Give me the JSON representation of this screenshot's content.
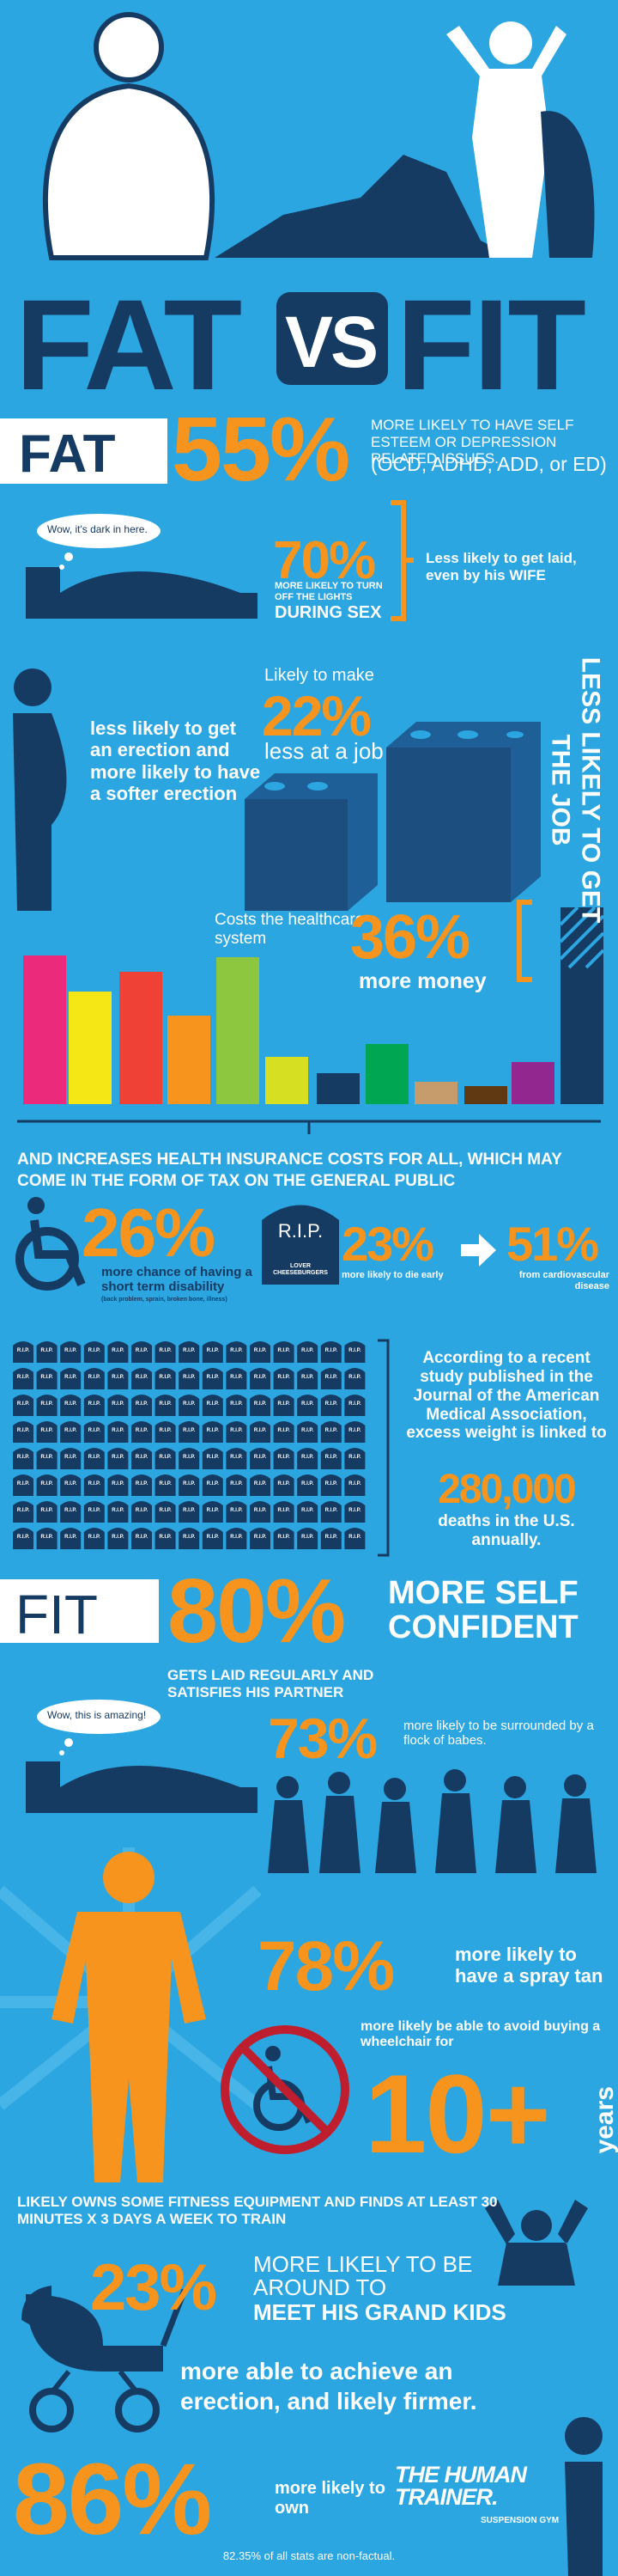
{
  "header": {
    "title_fat": "FAT",
    "title_vs": "VS",
    "title_fit": "FIT"
  },
  "fat": {
    "label": "FAT",
    "stat": "55%",
    "text_1": "MORE LIKELY TO HAVE SELF ESTEEM OR DEPRESSION RELATED ISSUES.",
    "text_2": "(OCD, ADHD, ADD, or ED)"
  },
  "lights": {
    "bubble": "Wow, it's dark in here.",
    "stat": "70%",
    "text_1": "MORE LIKELY TO TURN OFF THE LIGHTS",
    "text_2": "DURING SEX",
    "aside": "Less likely to get laid, even by his",
    "aside_emphasis": "WIFE"
  },
  "job": {
    "erection": "less likely to get an erection and more likely to have a softer erection",
    "lead": "Likely to make",
    "stat": "22%",
    "tail": "less at a job",
    "vertical": "LESS LIKELY TO GET THE JOB"
  },
  "healthcare": {
    "lead": "Costs the healthcare system",
    "stat": "36%",
    "tail": "more money",
    "insurance": "AND INCREASES HEALTH INSURANCE COSTS FOR ALL, WHICH MAY COME IN THE FORM OF TAX ON THE GENERAL PUBLIC"
  },
  "disability": {
    "stat": "26%",
    "text": "more chance of having a short term disability",
    "note": "(back problem, sprain, broken bone, illness)",
    "rip": "R.I.P.",
    "rip_sub": "LOVER CHEESEBURGERS",
    "die_stat": "23%",
    "die_text": "more likely to die early",
    "cardio_stat": "51%",
    "cardio_text": "from cardiovascular disease"
  },
  "deaths": {
    "grid_label": "R.I.P.",
    "text": "According to a recent study published in the Journal of the American Medical Association, excess weight is linked to",
    "stat": "280,000",
    "tail": "deaths in the U.S. annually."
  },
  "fit": {
    "label": "FIT",
    "stat": "80%",
    "text": "MORE SELF CONFIDENT"
  },
  "babes": {
    "bubble": "Wow, this is amazing!",
    "headline": "GETS LAID REGULARLY AND SATISFIES HIS PARTNER",
    "stat": "73%",
    "text": "more likely to be surrounded by a flock of babes."
  },
  "tan": {
    "stat": "78%",
    "text": "more likely to have a spray tan"
  },
  "wheelchair": {
    "text": "more likely be able to avoid buying a wheelchair for",
    "stat": "10+",
    "unit": "years"
  },
  "equipment": {
    "text": "LIKELY OWNS SOME FITNESS EQUIPMENT AND FINDS AT LEAST 30 MINUTES X 3 DAYS A WEEK TO TRAIN"
  },
  "grandkids": {
    "stat": "23%",
    "text": "MORE LIKELY TO BE AROUND TO",
    "emphasis": "MEET HIS GRAND KIDS"
  },
  "firmer": {
    "text": "more able to achieve an erection, and likely firmer."
  },
  "own": {
    "stat": "86%",
    "text": "more likely to own",
    "brand": "THE HUMAN TRAINER.",
    "brand_sub": "SUSPENSION GYM"
  },
  "footer": {
    "note": "82.35% of all stats are non-factual."
  }
}
